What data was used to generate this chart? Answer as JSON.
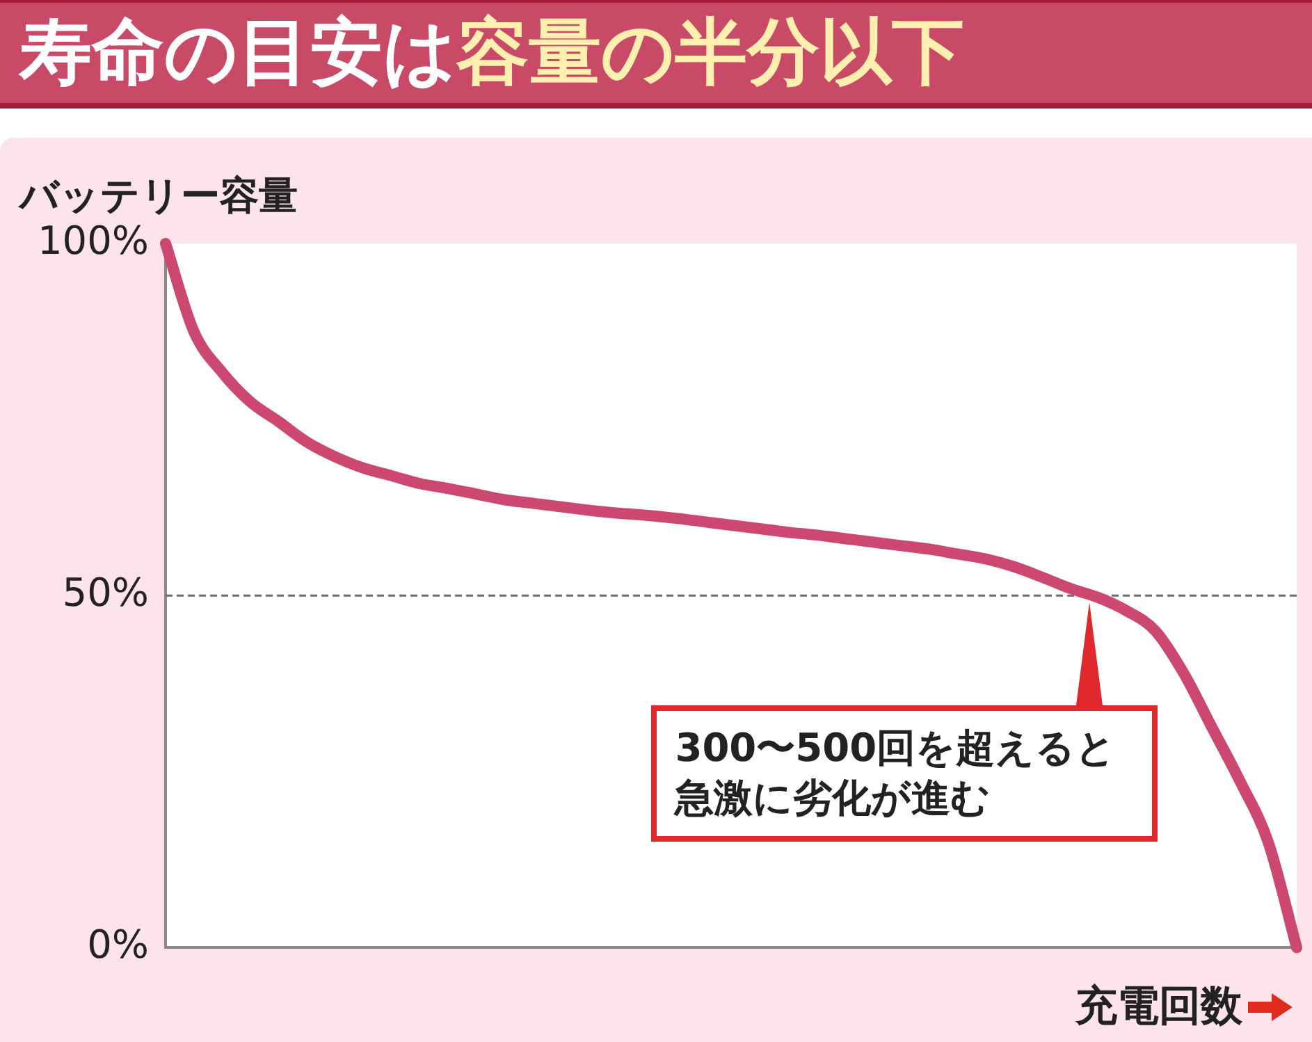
{
  "chart_data": {
    "type": "line",
    "title": "寿命の目安は容量の半分以下",
    "ylabel": "バッテリー容量",
    "xlabel": "充電回数",
    "categories": [
      null,
      null,
      null,
      null,
      null,
      null,
      null,
      null,
      null,
      null,
      null,
      null,
      null,
      null,
      null,
      null,
      null,
      null,
      null,
      null,
      null,
      null,
      null,
      null,
      null,
      null,
      null,
      null,
      null,
      null,
      null,
      null,
      null,
      null,
      null,
      null,
      null,
      null,
      null,
      null,
      null
    ],
    "values": [
      100,
      87.5,
      81.7,
      77.5,
      74.7,
      71.8,
      69.7,
      68.1,
      67.0,
      65.9,
      65.2,
      64.4,
      63.6,
      63.1,
      62.6,
      62.1,
      61.7,
      61.4,
      61.0,
      60.5,
      60.0,
      59.5,
      59.0,
      58.6,
      58.1,
      57.6,
      57.1,
      56.6,
      55.9,
      55.2,
      54.1,
      52.6,
      51.0,
      49.7,
      47.8,
      45.0,
      39.0,
      31.3,
      23.6,
      14.9,
      0
    ],
    "color": "#cc4870",
    "ylim": [
      0,
      100
    ],
    "yticks": [
      {
        "value": 0,
        "label": "0%"
      },
      {
        "value": 50,
        "label": "50%"
      },
      {
        "value": 100,
        "label": "100%"
      }
    ],
    "tick_labels": "y",
    "legend": false,
    "ref_lines": [
      {
        "axis": "y",
        "value": 50,
        "line_style": "dashed",
        "color": "#6e6e6e"
      }
    ],
    "annotations": [
      "300〜500回を超えると急激に劣化が進む"
    ]
  }
}
